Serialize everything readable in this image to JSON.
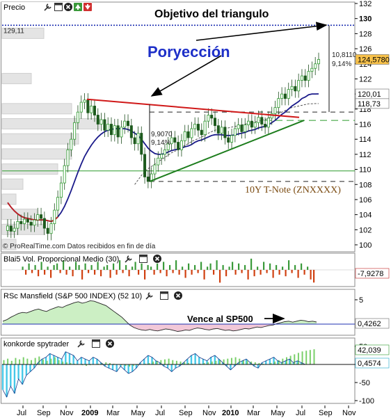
{
  "chart_data": [
    {
      "type": "candlestick",
      "title": "Precio",
      "instrument_label": "10Y T-Note (ZNXXXX)",
      "annotations": {
        "target": "Objetivo del triangulo",
        "projection": "Poryección",
        "triangle_height": "9,9070",
        "triangle_height_pct": "9,14%",
        "projected_move": "10,8110",
        "projected_move_pct": "9,14%",
        "watermark": "© ProRealTime.com  Datos recibidos en fin de día"
      },
      "price_tags": {
        "target_level": "129,11",
        "last": "124,5780",
        "ma_fast": "120,01",
        "ma_slow": "118,73"
      },
      "y_ticks": [
        "100",
        "102",
        "104",
        "106",
        "108",
        "110",
        "112",
        "114",
        "116",
        "118",
        "120",
        "122",
        "124",
        "126",
        "128",
        "130",
        "132"
      ],
      "ylim": [
        100,
        132
      ],
      "x_ticks": [
        "Jul",
        "Sep",
        "Nov",
        "2009",
        "Mar",
        "May",
        "Jul",
        "Sep",
        "Nov",
        "2010",
        "Mar",
        "May",
        "Jul",
        "Sep",
        "Nov"
      ],
      "series": [
        {
          "name": "Precio",
          "close": [
            102.5,
            101.8,
            102.2,
            103.1,
            102.8,
            103.4,
            103.0,
            102.6,
            103.3,
            104.0,
            103.5,
            102.2,
            101.5,
            102.8,
            104.6,
            106.3,
            108.2,
            110.5,
            112.6,
            114.0,
            116.2,
            117.6,
            118.9,
            119.2,
            117.5,
            118.4,
            117.2,
            116.0,
            116.6,
            115.2,
            116.0,
            114.6,
            115.8,
            114.3,
            115.6,
            116.4,
            115.8,
            114.2,
            113.4,
            114.8,
            112.0,
            109.0,
            108.4,
            109.4,
            110.6,
            111.5,
            112.0,
            112.6,
            113.4,
            114.2,
            113.6,
            112.6,
            113.8,
            115.0,
            114.2,
            115.4,
            116.0,
            115.2,
            114.6,
            116.4,
            117.2,
            116.8,
            115.8,
            114.8,
            115.6,
            114.2,
            113.6,
            114.5,
            115.4,
            115.9,
            115.0,
            115.9,
            116.4,
            115.6,
            116.2,
            116.9,
            116.0,
            115.6,
            116.8,
            117.4,
            118.2,
            119.4,
            120.0,
            119.4,
            120.6,
            121.0,
            120.4,
            121.8,
            122.4,
            121.8,
            123.0,
            123.4,
            124.0,
            124.58
          ]
        },
        {
          "name": "Media rápida",
          "values": [
            105.6,
            105.0,
            104.5,
            104.1,
            103.8,
            103.6,
            103.5,
            103.4,
            103.3,
            103.3,
            103.3,
            103.3,
            103.2,
            103.1,
            103.3,
            103.7,
            104.3,
            105.1,
            106.1,
            107.2,
            108.4,
            109.6,
            110.7,
            111.7,
            112.5,
            113.2,
            113.8,
            114.3,
            114.7,
            115.0,
            115.2,
            115.3,
            115.4,
            115.4,
            115.4,
            115.4,
            115.3,
            115.1,
            114.8,
            114.5,
            114.0,
            113.4,
            112.8,
            112.4,
            112.1,
            112.0,
            112.0,
            112.1,
            112.3,
            112.5,
            112.6,
            112.7,
            112.8,
            113.0,
            113.1,
            113.3,
            113.6,
            113.8,
            113.9,
            114.1,
            114.3,
            114.5,
            114.6,
            114.6,
            114.6,
            114.5,
            114.5,
            114.5,
            114.6,
            114.7,
            114.8,
            114.9,
            115.1,
            115.2,
            115.3,
            115.5,
            115.6,
            115.7,
            115.9,
            116.2,
            116.5,
            116.9,
            117.3,
            117.6,
            118.0,
            118.4,
            118.7,
            119.0,
            119.4,
            119.6,
            119.9,
            120.0,
            120.0,
            120.01
          ]
        },
        {
          "name": "Media lenta",
          "values": [
            null,
            null,
            null,
            null,
            null,
            null,
            null,
            null,
            null,
            null,
            null,
            null,
            null,
            null,
            null,
            null,
            null,
            null,
            null,
            null,
            null,
            null,
            null,
            null,
            null,
            null,
            null,
            null,
            null,
            null,
            null,
            null,
            null,
            null,
            null,
            null,
            null,
            null,
            108.0,
            108.6,
            109.2,
            109.7,
            110.1,
            110.4,
            110.7,
            111.0,
            111.3,
            111.6,
            111.9,
            112.2,
            112.4,
            112.6,
            112.9,
            113.2,
            113.4,
            113.7,
            113.9,
            114.1,
            114.3,
            114.5,
            114.8,
            115.0,
            115.2,
            115.3,
            115.4,
            115.5,
            115.5,
            115.6,
            115.7,
            115.8,
            115.9,
            116.0,
            116.1,
            116.2,
            116.3,
            116.4,
            116.5,
            116.6,
            116.8,
            117.0,
            117.2,
            117.4,
            117.6,
            117.8,
            118.0,
            118.2,
            118.3,
            118.4,
            118.5,
            118.6,
            118.7,
            118.7,
            118.73,
            118.73
          ]
        }
      ]
    },
    {
      "type": "bar",
      "title": "Blai5 Vol. Proporcional Medio (30)",
      "last_value": "-7,9278",
      "values": [
        2,
        -3,
        4,
        -2,
        3,
        -4,
        5,
        -3,
        2,
        -5,
        3,
        4,
        -2,
        6,
        -3,
        2,
        -4,
        5,
        3,
        -6,
        4,
        -2,
        3,
        -3,
        5,
        -4,
        2,
        3,
        -5,
        4,
        -3,
        6,
        -2,
        3,
        -4,
        2,
        5,
        -3,
        4,
        -6,
        3,
        2,
        -3,
        4,
        -2,
        5,
        -4,
        3,
        -2,
        6,
        -3,
        2,
        -5,
        4,
        -3,
        3,
        -2,
        5,
        -6,
        2,
        4,
        -3,
        6,
        -8,
        3,
        -4,
        2,
        5,
        -3,
        4,
        -2,
        3,
        -6,
        7,
        -4,
        2,
        -3,
        5,
        -2,
        4,
        -5,
        3,
        -3,
        2,
        -4,
        6,
        -2,
        3,
        -5,
        4,
        -3,
        2,
        -6,
        -7.93
      ]
    },
    {
      "type": "area",
      "title": "RSc Mansfield (S&P 500 INDEX) (52 10)",
      "annotation": "Vence al SP500",
      "last_value": "0,4262",
      "y_ticks": [
        "5",
        "0"
      ],
      "ylim": [
        -2.5,
        6
      ],
      "values": [
        0.6,
        0.9,
        1.4,
        1.8,
        2.2,
        2.4,
        2.3,
        2.6,
        2.9,
        3.1,
        2.8,
        2.6,
        3.0,
        3.3,
        3.6,
        3.4,
        3.8,
        4.1,
        4.4,
        4.6,
        4.3,
        4.5,
        4.8,
        4.7,
        4.4,
        4.1,
        3.8,
        3.2,
        2.6,
        2.0,
        1.4,
        0.6,
        -0.2,
        -0.7,
        -1.0,
        -1.2,
        -1.3,
        -1.1,
        -1.3,
        -1.4,
        -1.2,
        -1.0,
        -1.1,
        -1.3,
        -1.5,
        -1.4,
        -1.2,
        -1.3,
        -1.0,
        -0.8,
        -0.9,
        -1.1,
        -1.2,
        -1.0,
        -0.9,
        -1.1,
        -1.3,
        -1.2,
        -1.4,
        -1.3,
        -1.1,
        -0.9,
        -1.0,
        -0.8,
        -0.6,
        -0.7,
        -0.5,
        -0.3,
        -0.2,
        0.1,
        0.3,
        0.5,
        0.6,
        0.4,
        0.6,
        0.8,
        0.7,
        0.5,
        0.6,
        0.43
      ]
    },
    {
      "type": "area",
      "title": "konkorde spytrader",
      "last_values": [
        "42,039",
        "0,4574"
      ],
      "y_ticks": [
        "50",
        "0",
        "-50",
        "-100"
      ],
      "ylim": [
        -105,
        70
      ],
      "series": [
        {
          "name": "verde",
          "values": [
            12,
            16,
            10,
            18,
            14,
            20,
            16,
            12,
            18,
            22,
            14,
            10,
            16,
            20,
            12,
            8,
            6,
            4,
            2,
            0,
            -2,
            -4,
            -2,
            0,
            2,
            4,
            6,
            4,
            2,
            0,
            -2,
            -4,
            -6,
            -4,
            -2,
            0,
            2,
            4,
            8,
            10,
            12,
            14,
            16,
            12,
            10,
            8,
            6,
            4,
            2,
            0,
            2,
            4,
            6,
            8,
            10,
            12,
            14,
            16,
            18,
            20,
            16,
            12,
            10,
            8,
            6,
            4,
            2,
            0,
            4,
            8,
            12,
            16,
            20,
            24,
            28,
            32,
            36,
            38,
            40,
            42
          ]
        },
        {
          "name": "azul",
          "values": [
            -70,
            -90,
            -60,
            -80,
            -40,
            -55,
            -30,
            -20,
            -10,
            5,
            15,
            20,
            30,
            25,
            20,
            15,
            35,
            30,
            25,
            10,
            20,
            15,
            10,
            20,
            15,
            5,
            -5,
            -10,
            -15,
            -20,
            -5,
            -15,
            -25,
            -20,
            -10,
            5,
            15,
            25,
            20,
            10,
            5,
            -5,
            -10,
            -20,
            -10,
            -5,
            5,
            15,
            25,
            30,
            20,
            15,
            10,
            20,
            25,
            15,
            5,
            -5,
            -15,
            -5,
            5,
            10,
            15,
            5,
            -5,
            -10,
            5,
            10,
            15,
            20,
            10,
            5,
            10,
            15,
            5,
            10,
            5,
            0,
            0,
            0.46
          ]
        }
      ]
    }
  ],
  "x_axis": {
    "labels": [
      "Jul",
      "Sep",
      "Nov",
      "2009",
      "Mar",
      "May",
      "Jul",
      "Sep",
      "Nov",
      "2010",
      "Mar",
      "May",
      "Jul",
      "Sep",
      "Nov"
    ]
  }
}
